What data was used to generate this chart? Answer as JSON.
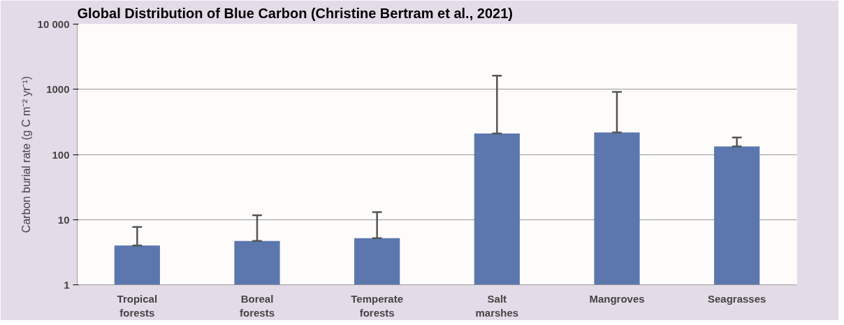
{
  "chart_data": {
    "type": "bar",
    "title": "Global Distribution of Blue Carbon (Christine Bertram et al., 2021)",
    "ylabel": "Carbon burial rate (g C m⁻² yr⁻¹)",
    "categories": [
      "Tropical forests",
      "Boreal forests",
      "Temperate forests",
      "Salt marshes",
      "Mangroves",
      "Seagrasses"
    ],
    "values": [
      4.0,
      4.7,
      5.2,
      210,
      218,
      133
    ],
    "errors": [
      [
        4.0,
        7.7
      ],
      [
        4.7,
        11.7
      ],
      [
        5.2,
        13
      ],
      [
        210,
        1620
      ],
      [
        218,
        910
      ],
      [
        133,
        182
      ]
    ],
    "color": "#5b77ae",
    "log": "y",
    "ylim": [
      1,
      10000
    ],
    "yticks": [
      1,
      10,
      100,
      1000,
      {
        "value": 10000,
        "label": "10 000"
      }
    ],
    "grid": "y"
  }
}
